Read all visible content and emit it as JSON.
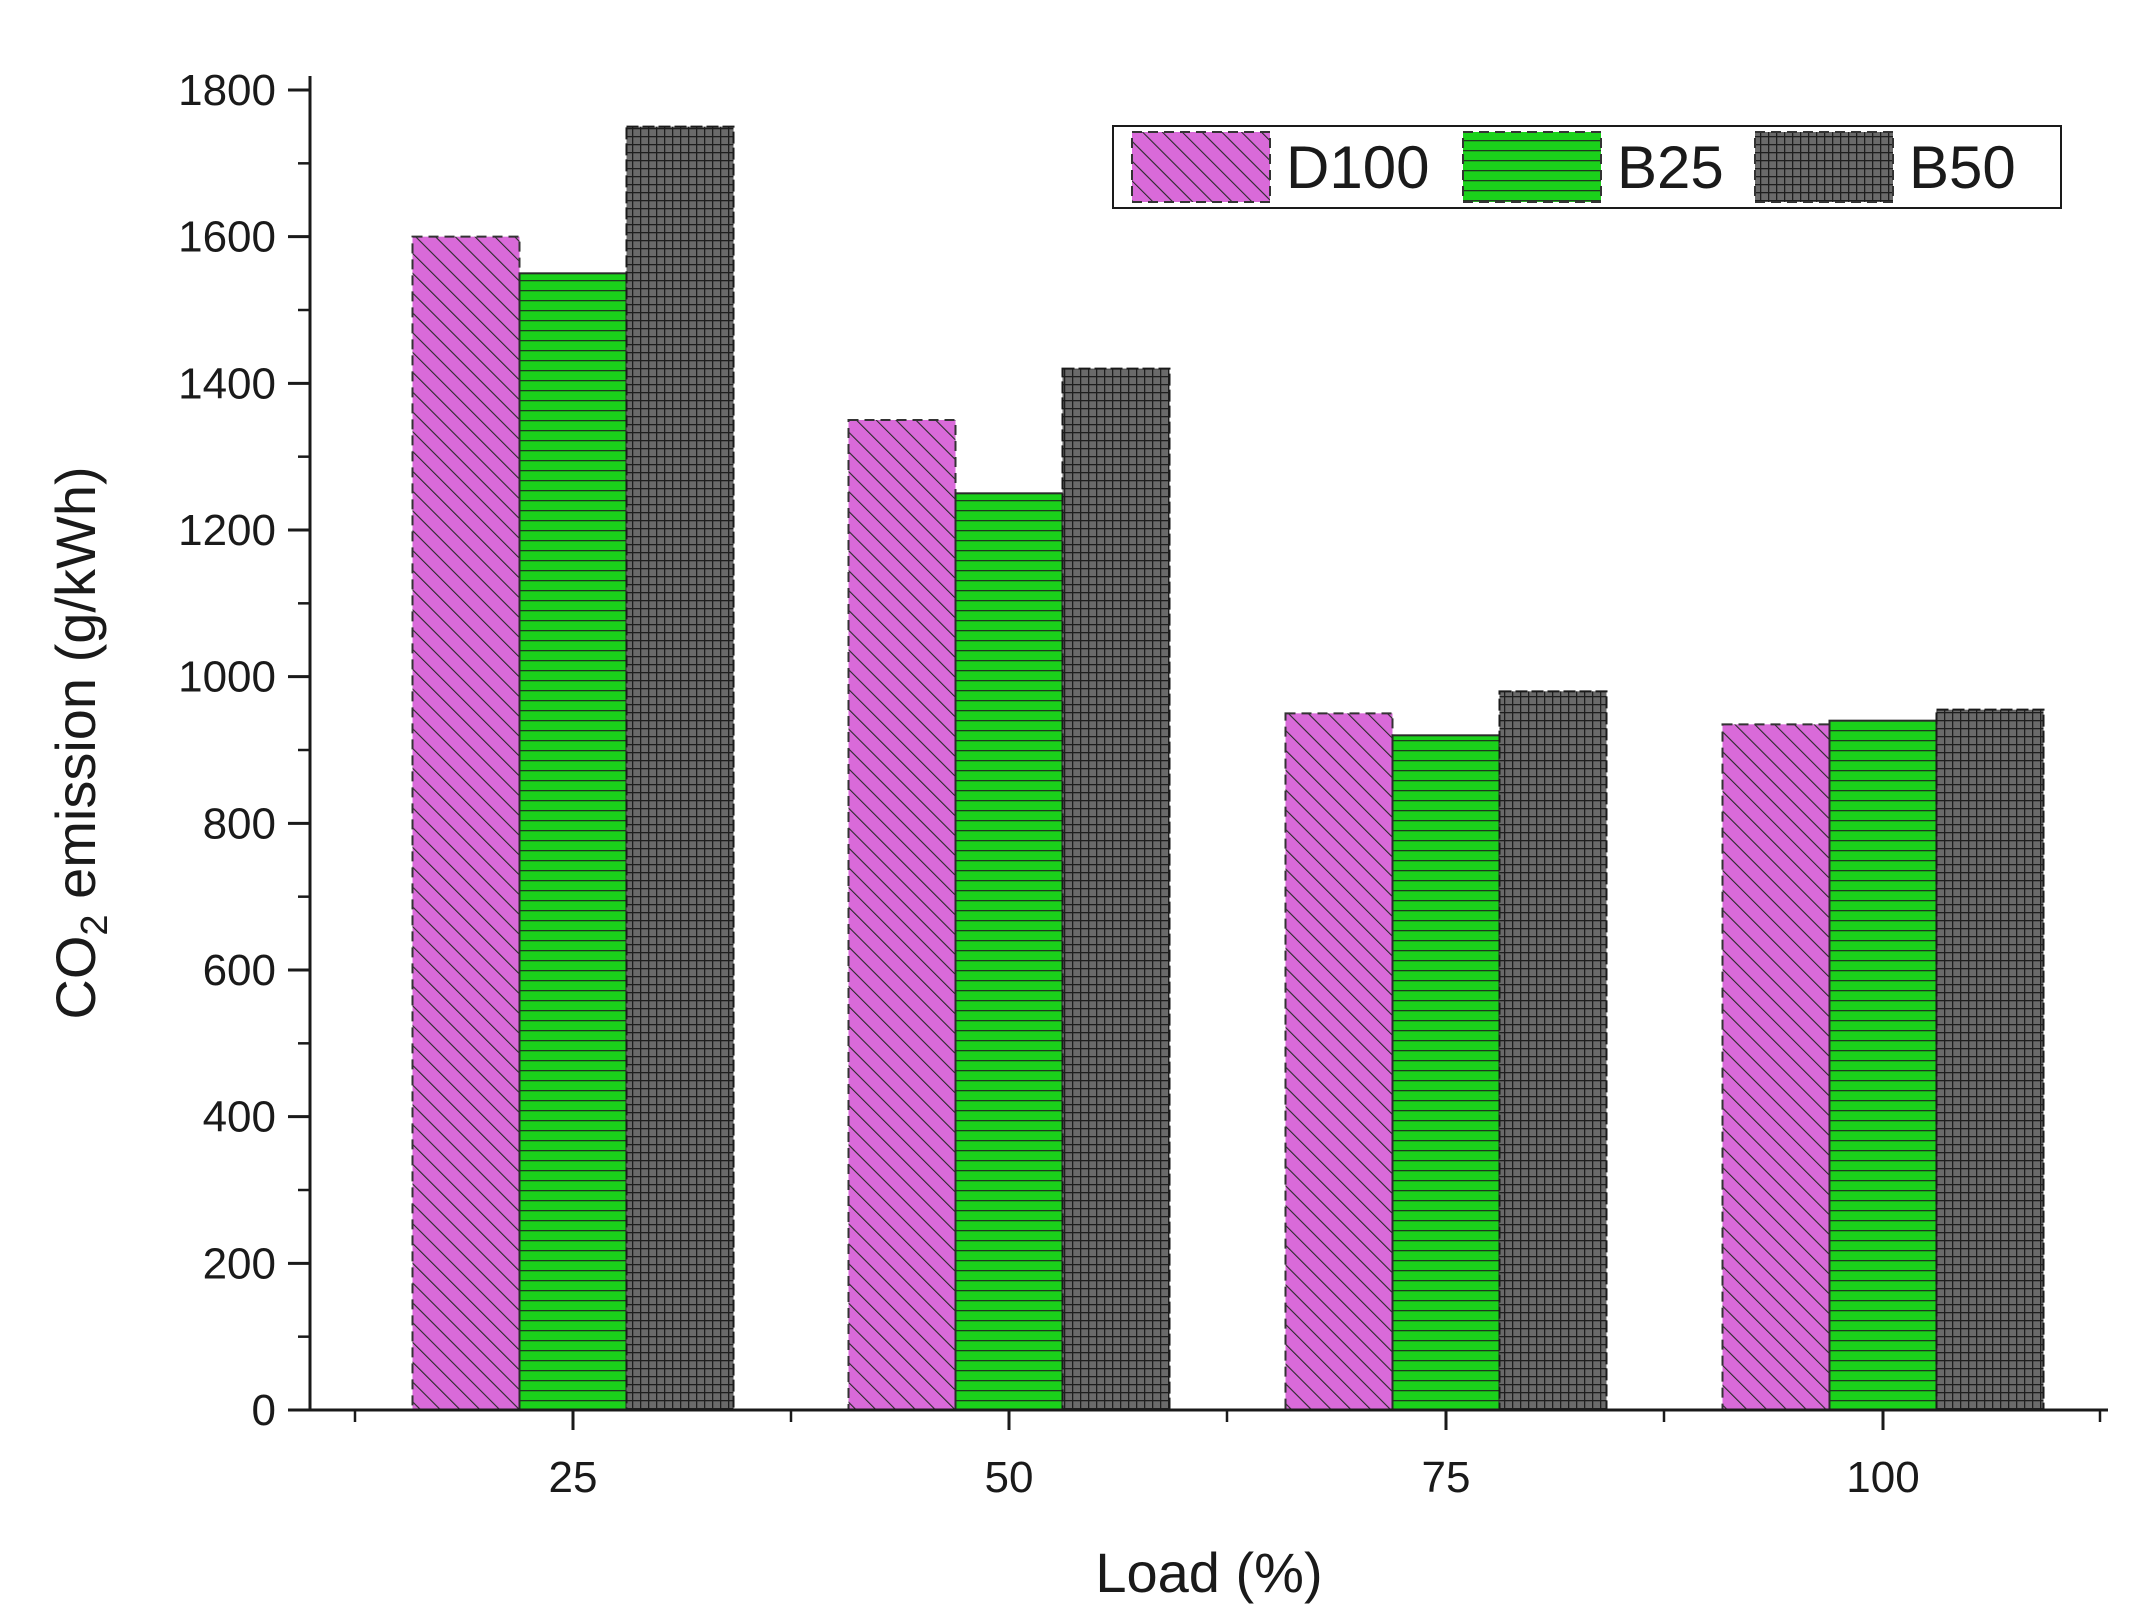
{
  "chart_data": {
    "type": "bar",
    "title": "",
    "xlabel": "Load (%)",
    "ylabel": {
      "prefix": "CO",
      "subscript": "2",
      "suffix": " emission (g/kWh)"
    },
    "categories": [
      "25",
      "50",
      "75",
      "100"
    ],
    "series": [
      {
        "name": "D100",
        "values": [
          1600,
          1350,
          950,
          935
        ],
        "color": "#d96ad9",
        "pattern": "diagonal-hatch"
      },
      {
        "name": "B25",
        "values": [
          1550,
          1250,
          920,
          940
        ],
        "color": "#1bd11b",
        "pattern": "horizontal-lines"
      },
      {
        "name": "B50",
        "values": [
          1750,
          1420,
          980,
          955
        ],
        "color": "#5e5e5e",
        "pattern": "grid"
      }
    ],
    "ylim": [
      0,
      1800
    ],
    "yticks": [
      0,
      200,
      400,
      600,
      800,
      1000,
      1200,
      1400,
      1600,
      1800
    ],
    "grid": false,
    "legend": {
      "position": "top-right",
      "orientation": "horizontal"
    }
  }
}
